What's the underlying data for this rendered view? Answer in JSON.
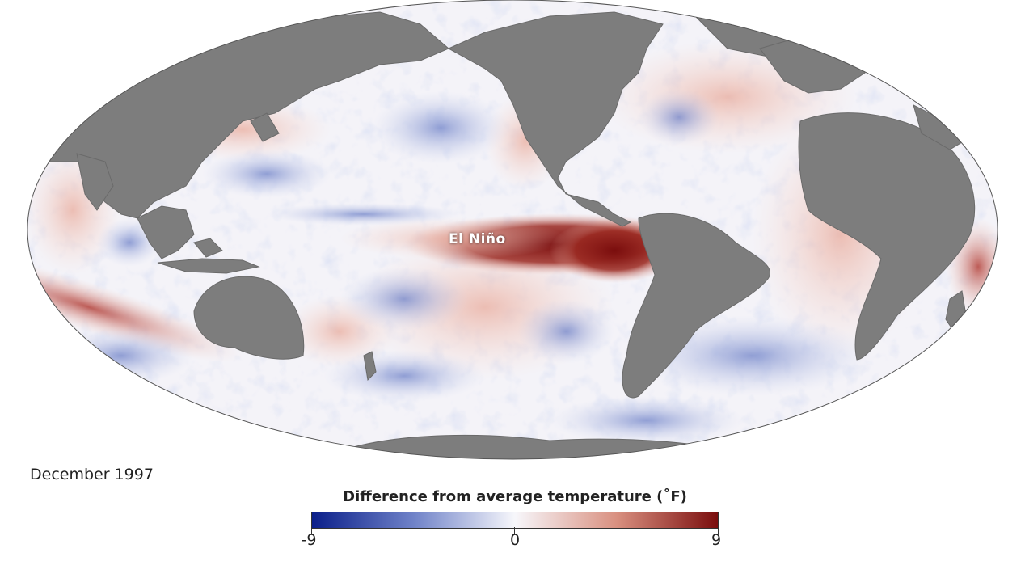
{
  "map": {
    "label_el_nino": "El Niño",
    "date": "December 1997"
  },
  "legend": {
    "title": "Difference from average temperature (˚F)",
    "min_label": "-9",
    "mid_label": "0",
    "max_label": "9",
    "colors": {
      "cold": "#0b1f8a",
      "neutral": "#f7f7fb",
      "warm": "#7a0d0d",
      "land": "#7d7d7d"
    }
  }
}
